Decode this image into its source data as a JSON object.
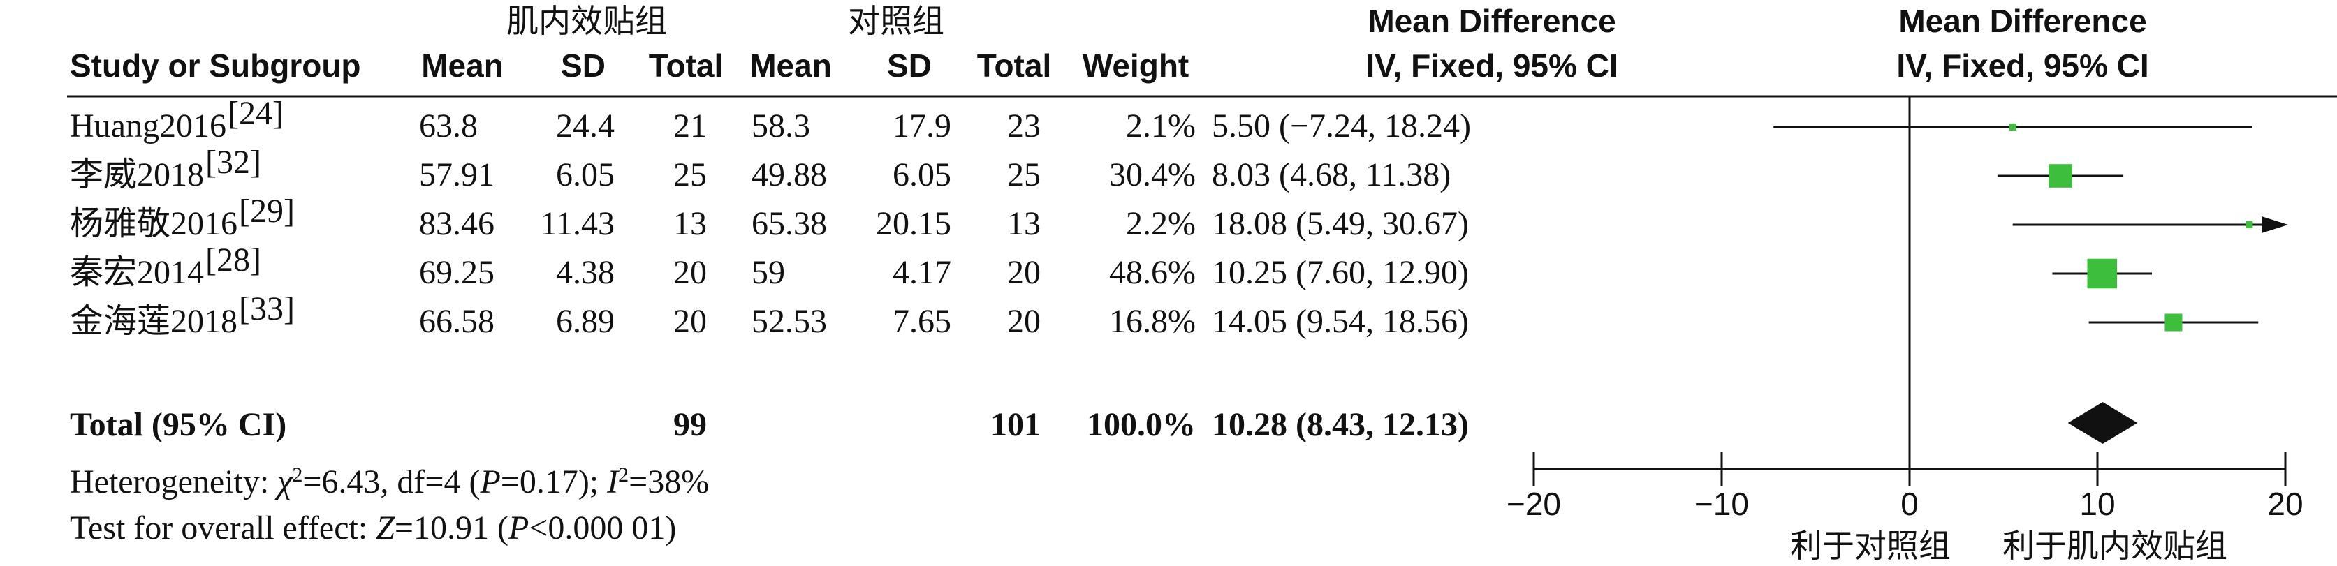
{
  "group_labels": {
    "treatment": "肌内效贴组",
    "control": "对照组"
  },
  "headers": {
    "study": "Study or Subgroup",
    "mean_t": "Mean",
    "sd_t": "SD",
    "total_t": "Total",
    "mean_c": "Mean",
    "sd_c": "SD",
    "total_c": "Total",
    "weight": "Weight",
    "md_line1": "Mean Difference",
    "md_line2": "IV, Fixed, 95% CI",
    "plot_line1": "Mean Difference",
    "plot_line2": "IV, Fixed, 95% CI"
  },
  "rows": [
    {
      "study": "Huang2016",
      "ref": "[24]",
      "mean_t": "63.8",
      "sd_t": "24.4",
      "total_t": "21",
      "mean_c": "58.3",
      "sd_c": "17.9",
      "total_c": "23",
      "weight": "2.1%",
      "ci": "5.50 (−7.24, 18.24)"
    },
    {
      "study": "李威2018",
      "ref": "[32]",
      "mean_t": "57.91",
      "sd_t": "6.05",
      "total_t": "25",
      "mean_c": "49.88",
      "sd_c": "6.05",
      "total_c": "25",
      "weight": "30.4%",
      "ci": "8.03 (4.68, 11.38)"
    },
    {
      "study": "杨雅敬2016",
      "ref": "[29]",
      "mean_t": "83.46",
      "sd_t": "11.43",
      "total_t": "13",
      "mean_c": "65.38",
      "sd_c": "20.15",
      "total_c": "13",
      "weight": "2.2%",
      "ci": "18.08 (5.49, 30.67)"
    },
    {
      "study": "秦宏2014",
      "ref": "[28]",
      "mean_t": "69.25",
      "sd_t": "4.38",
      "total_t": "20",
      "mean_c": "59",
      "sd_c": "4.17",
      "total_c": "20",
      "weight": "48.6%",
      "ci": "10.25 (7.60, 12.90)"
    },
    {
      "study": "金海莲2018",
      "ref": "[33]",
      "mean_t": "66.58",
      "sd_t": "6.89",
      "total_t": "20",
      "mean_c": "52.53",
      "sd_c": "7.65",
      "total_c": "20",
      "weight": "16.8%",
      "ci": "14.05 (9.54, 18.56)"
    }
  ],
  "total": {
    "label": "Total (95% CI)",
    "total_t": "99",
    "total_c": "101",
    "weight": "100.0%",
    "ci": "10.28 (8.43, 12.13)"
  },
  "heterogeneity": {
    "prefix": "Heterogeneity: ",
    "chi": "χ",
    "chi_sup": "2",
    "chi_rest": "=6.43, df=4 (",
    "p": "P",
    "p_rest": "=0.17); ",
    "i": "I",
    "i_sup": "2",
    "i_rest": "=38%"
  },
  "overall": {
    "prefix": "Test for overall effect: ",
    "z": "Z",
    "z_rest": "=10.91 (",
    "p": "P",
    "p_rest": "<0.000 01)"
  },
  "favors": {
    "left": "利于对照组",
    "right": "利于肌内效贴组"
  },
  "colors": {
    "square": "#3dbf3d",
    "diamond": "#111111",
    "line": "#111111"
  },
  "chart_data": {
    "type": "forest",
    "xlim": [
      -20,
      20
    ],
    "ticks": [
      {
        "v": -20,
        "label": "−20"
      },
      {
        "v": -10,
        "label": "−10"
      },
      {
        "v": 0,
        "label": "0"
      },
      {
        "v": 10,
        "label": "10"
      },
      {
        "v": 20,
        "label": "20"
      }
    ],
    "studies": [
      {
        "md": 5.5,
        "lo": -7.24,
        "hi": 18.24,
        "weight": 2.1
      },
      {
        "md": 8.03,
        "lo": 4.68,
        "hi": 11.38,
        "weight": 30.4
      },
      {
        "md": 18.08,
        "lo": 5.49,
        "hi": 30.67,
        "weight": 2.2
      },
      {
        "md": 10.25,
        "lo": 7.6,
        "hi": 12.9,
        "weight": 48.6
      },
      {
        "md": 14.05,
        "lo": 9.54,
        "hi": 18.56,
        "weight": 16.8
      }
    ],
    "overall": {
      "md": 10.28,
      "lo": 8.43,
      "hi": 12.13
    }
  }
}
